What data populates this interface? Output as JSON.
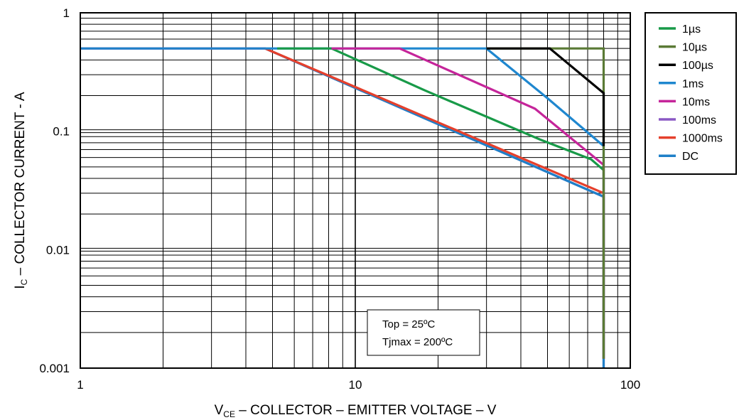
{
  "chart_data": {
    "type": "line",
    "x_scale": "log",
    "y_scale": "log",
    "xlim": [
      1,
      100
    ],
    "ylim": [
      0.001,
      1
    ],
    "xlabel": {
      "main": "V",
      "sub": "CE",
      "rest": " – COLLECTOR – EMITTER VOLTAGE – V"
    },
    "ylabel": {
      "main": "I",
      "sub": "C",
      "rest": " – COLLECTOR CURRENT - A"
    },
    "x_ticks": [
      {
        "value": 1,
        "label": "1"
      },
      {
        "value": 10,
        "label": "10"
      },
      {
        "value": 100,
        "label": "100"
      }
    ],
    "y_ticks": [
      {
        "value": 0.001,
        "label": "0.001"
      },
      {
        "value": 0.01,
        "label": "0.01"
      },
      {
        "value": 0.1,
        "label": "0.1"
      },
      {
        "value": 1,
        "label": "1"
      }
    ],
    "grid": true,
    "legend_position": "outside-right",
    "annotation": [
      "Top = 25ºC",
      "Tjmax = 200ºC"
    ],
    "series": [
      {
        "name": "100ms",
        "color": "#8a58c4",
        "points": [
          [
            1,
            0.5
          ],
          [
            4.7,
            0.5
          ],
          [
            80,
            0.028
          ],
          [
            80,
            0.001
          ]
        ]
      },
      {
        "name": "DC",
        "color": "#1f80c8",
        "points": [
          [
            1,
            0.5
          ],
          [
            4.7,
            0.5
          ],
          [
            80,
            0.028
          ],
          [
            80,
            0.001
          ]
        ]
      },
      {
        "name": "1000ms",
        "color": "#e5402c",
        "points": [
          [
            4.7,
            0.5
          ],
          [
            80,
            0.03
          ],
          [
            80,
            0.0012
          ]
        ]
      },
      {
        "name": "1ms",
        "color": "#1f87cf",
        "points": [
          [
            4.7,
            0.5
          ],
          [
            30,
            0.5
          ],
          [
            50,
            0.19
          ],
          [
            80,
            0.075
          ],
          [
            80,
            0.0012
          ]
        ]
      },
      {
        "name": "1µs",
        "color": "#189a48",
        "points": [
          [
            5.2,
            0.5
          ],
          [
            8.2,
            0.5
          ],
          [
            18,
            0.22
          ],
          [
            47,
            0.085
          ],
          [
            72,
            0.058
          ],
          [
            80,
            0.047
          ],
          [
            80,
            0.0012
          ]
        ]
      },
      {
        "name": "10ms",
        "color": "#c5259a",
        "points": [
          [
            8.2,
            0.5
          ],
          [
            14.5,
            0.5
          ],
          [
            45,
            0.155
          ],
          [
            80,
            0.052
          ],
          [
            80,
            0.0012
          ]
        ]
      },
      {
        "name": "10µs",
        "color": "#5a7a35",
        "points": [
          [
            30,
            0.5
          ],
          [
            80,
            0.5
          ],
          [
            80,
            0.0012
          ]
        ]
      },
      {
        "name": "100µs",
        "color": "#000000",
        "points": [
          [
            30,
            0.5
          ],
          [
            51,
            0.5
          ],
          [
            80,
            0.21
          ],
          [
            80,
            0.075
          ]
        ]
      }
    ],
    "legend": [
      {
        "name": "1µs",
        "color": "#189a48"
      },
      {
        "name": "10µs",
        "color": "#5a7a35"
      },
      {
        "name": "100µs",
        "color": "#000000"
      },
      {
        "name": "1ms",
        "color": "#1f87cf"
      },
      {
        "name": "10ms",
        "color": "#c5259a"
      },
      {
        "name": "100ms",
        "color": "#8a58c4"
      },
      {
        "name": "1000ms",
        "color": "#e5402c"
      },
      {
        "name": "DC",
        "color": "#1f80c8"
      }
    ]
  }
}
